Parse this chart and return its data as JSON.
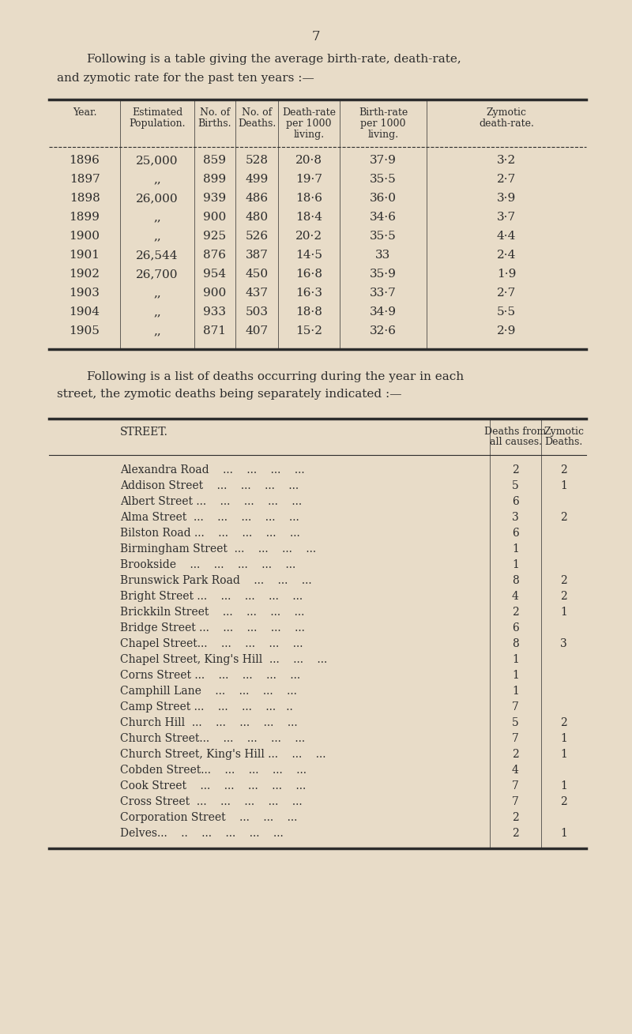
{
  "bg_color": "#e8dcc8",
  "text_color": "#2c2c2c",
  "page_number": "7",
  "intro_text1": "Following is a table giving the average birth-rate, death-rate,",
  "intro_text2": "and zymotic rate for the past ten years :—",
  "table1_headers_line1": [
    "Year.",
    "Estimated",
    "No. of",
    "No. of",
    "Death-rate",
    "Birth-rate",
    "Zymotic"
  ],
  "table1_headers_line2": [
    "",
    "Population.",
    "Births.",
    "Deaths.",
    "per 1000",
    "per 1000",
    "death-rate."
  ],
  "table1_headers_line3": [
    "",
    "",
    "",
    "",
    "living.",
    "living.",
    ""
  ],
  "table1_data": [
    [
      "1896",
      "25,000",
      "859",
      "528",
      "20·8",
      "37·9",
      "3·2"
    ],
    [
      "1897",
      ",,",
      "899",
      "499",
      "19·7",
      "35·5",
      "2·7"
    ],
    [
      "1898",
      "26,000",
      "939",
      "486",
      "18·6",
      "36·0",
      "3·9"
    ],
    [
      "1899",
      ",,",
      "900",
      "480",
      "18·4",
      "34·6",
      "3·7"
    ],
    [
      "1900",
      ",,",
      "925",
      "526",
      "20·2",
      "35·5",
      "4·4"
    ],
    [
      "1901",
      "26,544",
      "876",
      "387",
      "14·5",
      "33",
      "2·4"
    ],
    [
      "1902",
      "26,700",
      "954",
      "450",
      "16·8",
      "35·9",
      "1·9"
    ],
    [
      "1903",
      ",,",
      "900",
      "437",
      "16·3",
      "33·7",
      "2·7"
    ],
    [
      "1904",
      ",,",
      "933",
      "503",
      "18·8",
      "34·9",
      "5·5"
    ],
    [
      "1905",
      ",,",
      "871",
      "407",
      "15·2",
      "32·6",
      "2·9"
    ]
  ],
  "intro2_text1": "Following is a list of deaths occurring during the year in each",
  "intro2_text2": "street, the zymotic deaths being separately indicated :—",
  "table2_header_street": "STREET.",
  "table2_header_deaths": "Deaths from",
  "table2_header_deaths2": "all causes.",
  "table2_header_zymotic": "Zymotic",
  "table2_header_zymotic2": "Deaths.",
  "table2_data": [
    [
      "Alexandra Road    ...    ...    ...    ...",
      "2",
      "2"
    ],
    [
      "Addison Street    ...    ...    ...    ...",
      "5",
      "1"
    ],
    [
      "Albert Street ...    ...    ...    ...    ...",
      "6",
      ""
    ],
    [
      "Alma Street  ...    ...    ...    ...    ...",
      "3",
      "2"
    ],
    [
      "Bilston Road ...    ...    ...    ...    ...",
      "6",
      ""
    ],
    [
      "Birmingham Street  ...    ...    ...    ...",
      "1",
      ""
    ],
    [
      "Brookside    ...    ...    ...    ...    ...",
      "1",
      ""
    ],
    [
      "Brunswick Park Road    ...    ...    ...",
      "8",
      "2"
    ],
    [
      "Bright Street ...    ...    ...    ...    ...",
      "4",
      "2"
    ],
    [
      "Brickkiln Street    ...    ...    ...    ...",
      "2",
      "1"
    ],
    [
      "Bridge Street ...    ...    ...    ...    ...",
      "6",
      ""
    ],
    [
      "Chapel Street...    ...    ...    ...    ...",
      "8",
      "3"
    ],
    [
      "Chapel Street, King's Hill  ...    ...    ...",
      "1",
      ""
    ],
    [
      "Corns Street ...    ...    ...    ...    ...",
      "1",
      ""
    ],
    [
      "Camphill Lane    ...    ...    ...    ...",
      "1",
      ""
    ],
    [
      "Camp Street ...    ...    ...    ...   ..",
      "7",
      ""
    ],
    [
      "Church Hill  ...    ...    ...    ...    ...",
      "5",
      "2"
    ],
    [
      "Church Street...    ...    ...    ...    ...",
      "7",
      "1"
    ],
    [
      "Church Street, King's Hill ...    ...    ...",
      "2",
      "1"
    ],
    [
      "Cobden Street...    ...    ...    ...    ...",
      "4",
      ""
    ],
    [
      "Cook Street    ...    ...    ...    ...    ...",
      "7",
      "1"
    ],
    [
      "Cross Street  ...    ...    ...    ...    ...",
      "7",
      "2"
    ],
    [
      "Corporation Street    ...    ...    ...",
      "2",
      ""
    ],
    [
      "Delves...    ..    ...    ...    ...    ...",
      "2",
      "1"
    ]
  ]
}
